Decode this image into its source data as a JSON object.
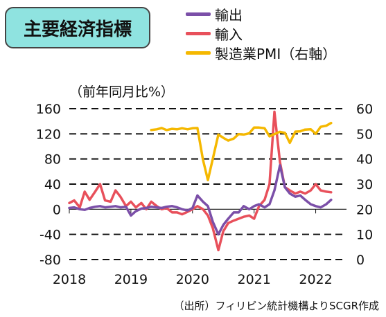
{
  "title": "主要経済指標",
  "unit_label": "（前年同月比%）",
  "source": "（出所）フィリピン統計機構よりSCGR作成",
  "legend": [
    {
      "name": "輸出",
      "color": "#7b4fa8"
    },
    {
      "name": "輸入",
      "color": "#e8505b"
    },
    {
      "name": "製造業PMI（右軸）",
      "color": "#f5b800"
    }
  ],
  "chart_data": {
    "type": "line",
    "x_ticks": [
      "2018",
      "2019",
      "2020",
      "2021",
      "2022"
    ],
    "y_left": {
      "range": [
        -80,
        160
      ],
      "ticks": [
        "160",
        "120",
        "80",
        "40",
        "0",
        "-40",
        "-80"
      ]
    },
    "y_right": {
      "range": [
        0,
        60
      ],
      "ticks": [
        "60",
        "50",
        "40",
        "30",
        "20",
        "10",
        "0"
      ]
    },
    "grid": true,
    "series": [
      {
        "name": "輸出",
        "axis": "left",
        "color": "#7b4fa8",
        "x": [
          2018.0,
          2018.08,
          2018.17,
          2018.25,
          2018.33,
          2018.42,
          2018.5,
          2018.58,
          2018.67,
          2018.75,
          2018.83,
          2018.92,
          2019.0,
          2019.08,
          2019.17,
          2019.25,
          2019.33,
          2019.42,
          2019.5,
          2019.58,
          2019.67,
          2019.75,
          2019.83,
          2019.92,
          2020.0,
          2020.08,
          2020.17,
          2020.25,
          2020.33,
          2020.42,
          2020.5,
          2020.58,
          2020.67,
          2020.75,
          2020.83,
          2020.92,
          2021.0,
          2021.08,
          2021.17,
          2021.25,
          2021.33,
          2021.42,
          2021.5,
          2021.58,
          2021.67,
          2021.75,
          2021.83,
          2021.92,
          2022.0,
          2022.08,
          2022.17,
          2022.25
        ],
        "y": [
          2,
          3,
          0,
          -1,
          2,
          4,
          5,
          3,
          4,
          5,
          3,
          4,
          -10,
          -3,
          1,
          2,
          4,
          3,
          2,
          4,
          5,
          3,
          0,
          -2,
          2,
          22,
          12,
          5,
          -20,
          -40,
          -25,
          -15,
          -5,
          -5,
          5,
          0,
          5,
          8,
          3,
          8,
          30,
          70,
          35,
          25,
          20,
          22,
          15,
          8,
          5,
          3,
          8,
          15
        ]
      },
      {
        "name": "輸入",
        "axis": "left",
        "color": "#e8505b",
        "x": [
          2018.0,
          2018.08,
          2018.17,
          2018.25,
          2018.33,
          2018.42,
          2018.5,
          2018.58,
          2018.67,
          2018.75,
          2018.83,
          2018.92,
          2019.0,
          2019.08,
          2019.17,
          2019.25,
          2019.33,
          2019.42,
          2019.5,
          2019.58,
          2019.67,
          2019.75,
          2019.83,
          2019.92,
          2020.0,
          2020.08,
          2020.17,
          2020.25,
          2020.33,
          2020.42,
          2020.5,
          2020.58,
          2020.67,
          2020.75,
          2020.83,
          2020.92,
          2021.0,
          2021.08,
          2021.17,
          2021.25,
          2021.33,
          2021.42,
          2021.5,
          2021.58,
          2021.67,
          2021.75,
          2021.83,
          2021.92,
          2022.0,
          2022.08,
          2022.17,
          2022.25
        ],
        "y": [
          10,
          14,
          3,
          28,
          15,
          28,
          40,
          14,
          12,
          30,
          20,
          5,
          12,
          3,
          10,
          0,
          12,
          5,
          0,
          2,
          -5,
          -5,
          -8,
          -4,
          0,
          5,
          0,
          -10,
          -30,
          -65,
          -35,
          -22,
          -18,
          -15,
          -12,
          -10,
          -15,
          5,
          15,
          40,
          155,
          75,
          35,
          30,
          25,
          28,
          25,
          30,
          40,
          30,
          28,
          27
        ]
      },
      {
        "name": "製造業PMI（右軸）",
        "axis": "right",
        "color": "#f5b800",
        "x": [
          2019.33,
          2019.42,
          2019.5,
          2019.58,
          2019.67,
          2019.75,
          2019.83,
          2019.92,
          2020.0,
          2020.08,
          2020.17,
          2020.25,
          2020.33,
          2020.42,
          2020.5,
          2020.58,
          2020.67,
          2020.75,
          2020.83,
          2020.92,
          2021.0,
          2021.08,
          2021.17,
          2021.25,
          2021.33,
          2021.42,
          2021.5,
          2021.58,
          2021.67,
          2021.75,
          2021.83,
          2021.92,
          2022.0,
          2022.08,
          2022.17,
          2022.25
        ],
        "y": [
          51.5,
          51.8,
          52.3,
          51.5,
          52.0,
          51.8,
          52.2,
          51.8,
          52.2,
          52.3,
          39.7,
          31.6,
          40.1,
          49.7,
          48.4,
          47.3,
          48.1,
          49.9,
          49.7,
          50.2,
          52.5,
          52.5,
          52.2,
          49.0,
          49.9,
          50.8,
          50.4,
          46.4,
          50.9,
          51.0,
          51.7,
          51.8,
          50.0,
          52.8,
          53.2,
          54.3
        ]
      }
    ]
  }
}
